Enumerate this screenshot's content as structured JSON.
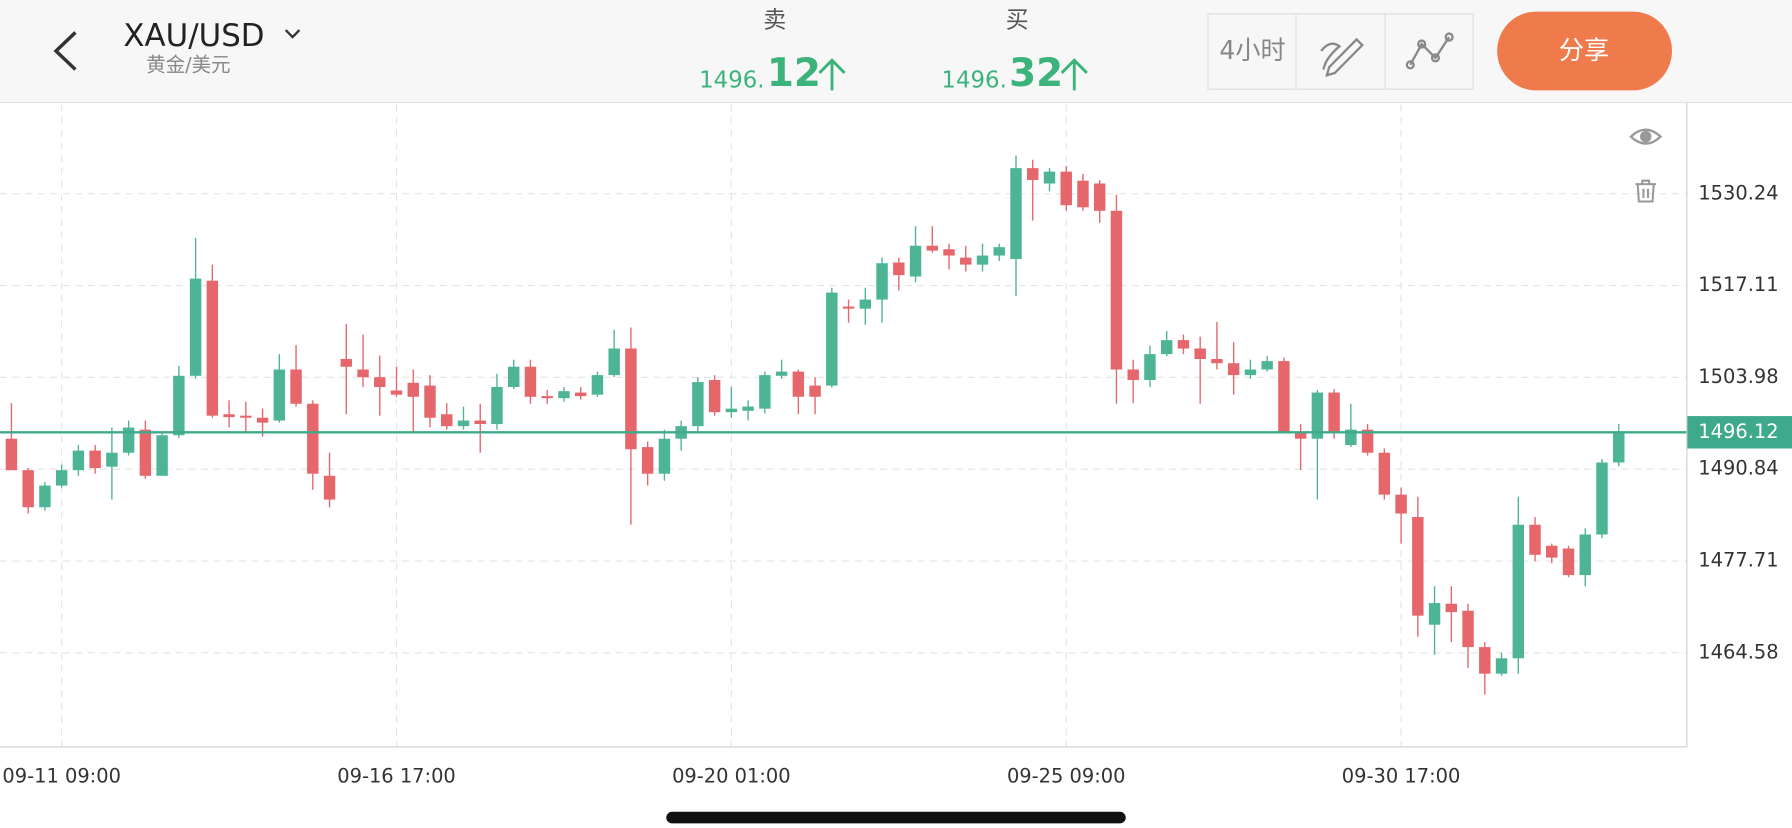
{
  "header": {
    "symbol": "XAU/USD",
    "symbol_name": "黄金/美元",
    "sell": {
      "label": "卖",
      "price_main": "1496.",
      "price_pips": "12"
    },
    "buy": {
      "label": "买",
      "price_main": "1496.",
      "price_pips": "32"
    },
    "timeframe": "4小时",
    "share": "分享"
  },
  "chart_data": {
    "type": "candlestick",
    "categories": [
      null,
      null,
      null,
      "09-11 09:00",
      null,
      null,
      null,
      null,
      null,
      null,
      null,
      null,
      null,
      null,
      null,
      null,
      null,
      null,
      null,
      null,
      null,
      null,
      null,
      "09-16 17:00",
      null,
      null,
      null,
      null,
      null,
      null,
      null,
      null,
      null,
      null,
      null,
      null,
      null,
      null,
      null,
      null,
      null,
      null,
      null,
      "09-20 01:00",
      null,
      null,
      null,
      null,
      null,
      null,
      null,
      null,
      null,
      null,
      null,
      null,
      null,
      null,
      null,
      null,
      null,
      null,
      null,
      "09-25 09:00",
      null,
      null,
      null,
      null,
      null,
      null,
      null,
      null,
      null,
      null,
      null,
      null,
      null,
      null,
      null,
      null,
      null,
      null,
      null,
      "09-30 17:00",
      null,
      null,
      null,
      null,
      null,
      null,
      null,
      null,
      null,
      null,
      null,
      null,
      null
    ],
    "open": [
      1495.2,
      1490.7,
      1485.4,
      1488.5,
      1490.7,
      1493.5,
      1491.2,
      1493.2,
      1496.5,
      1489.9,
      1495.7,
      1504.2,
      1517.8,
      1498.7,
      1498.5,
      1498.2,
      1497.8,
      1505.1,
      1500.2,
      1489.9,
      1506.6,
      1505.1,
      1504.0,
      1502.1,
      1503.2,
      1502.8,
      1498.7,
      1497.0,
      1497.8,
      1497.3,
      1502.6,
      1505.5,
      1501.3,
      1501.0,
      1501.8,
      1501.5,
      1504.3,
      1508.1,
      1494.0,
      1490.2,
      1495.2,
      1497.0,
      1503.6,
      1499.0,
      1499.2,
      1499.5,
      1504.2,
      1504.8,
      1502.8,
      1502.8,
      1514.1,
      1513.8,
      1515.1,
      1520.4,
      1518.4,
      1522.8,
      1522.3,
      1521.1,
      1520.1,
      1521.4,
      1520.9,
      1533.9,
      1531.7,
      1533.4,
      1532.1,
      1531.7,
      1527.8,
      1505.1,
      1503.6,
      1507.3,
      1509.3,
      1508.1,
      1506.6,
      1506.0,
      1504.3,
      1505.1,
      1506.3,
      1496.2,
      1495.2,
      1501.8,
      1494.3,
      1496.5,
      1493.2,
      1487.2,
      1484.0,
      1468.6,
      1471.6,
      1470.6,
      1465.4,
      1461.6,
      1463.8,
      1482.9,
      1479.9,
      1479.5,
      1475.7,
      1481.5,
      1491.8
    ],
    "high": [
      1500.3,
      1491.0,
      1489.0,
      1491.5,
      1494.3,
      1494.3,
      1496.8,
      1497.8,
      1497.8,
      1496.2,
      1505.6,
      1523.9,
      1520.1,
      1500.7,
      1500.5,
      1499.5,
      1507.3,
      1508.6,
      1500.7,
      1493.2,
      1511.6,
      1510.1,
      1507.1,
      1505.5,
      1505.1,
      1504.3,
      1500.3,
      1499.8,
      1500.2,
      1504.5,
      1506.5,
      1506.5,
      1502.2,
      1502.6,
      1502.6,
      1504.8,
      1510.8,
      1511.1,
      1494.8,
      1496.5,
      1497.8,
      1504.0,
      1504.3,
      1502.6,
      1500.7,
      1504.8,
      1506.5,
      1505.1,
      1504.0,
      1516.8,
      1515.1,
      1516.8,
      1521.1,
      1521.1,
      1525.6,
      1525.6,
      1523.1,
      1522.8,
      1523.1,
      1523.1,
      1535.7,
      1535.1,
      1533.9,
      1534.2,
      1533.1,
      1532.2,
      1530.1,
      1506.5,
      1508.5,
      1510.6,
      1510.1,
      1509.8,
      1511.9,
      1509.0,
      1506.5,
      1507.0,
      1506.8,
      1497.3,
      1502.2,
      1502.3,
      1500.2,
      1497.3,
      1493.8,
      1488.2,
      1486.9,
      1474.1,
      1474.1,
      1471.6,
      1466.1,
      1464.6,
      1486.9,
      1484.0,
      1480.2,
      1479.9,
      1482.4,
      1492.3,
      1497.3
    ],
    "low": [
      1490.7,
      1484.5,
      1484.9,
      1488.2,
      1489.9,
      1490.2,
      1486.5,
      1492.8,
      1489.5,
      1489.9,
      1495.3,
      1503.8,
      1498.2,
      1496.8,
      1496.2,
      1495.5,
      1497.5,
      1499.8,
      1487.9,
      1485.4,
      1498.7,
      1502.6,
      1498.5,
      1501.2,
      1496.2,
      1496.8,
      1496.5,
      1496.5,
      1493.2,
      1496.5,
      1502.3,
      1500.2,
      1500.2,
      1500.5,
      1500.8,
      1501.2,
      1504.0,
      1482.9,
      1488.5,
      1489.2,
      1493.5,
      1496.2,
      1498.5,
      1498.2,
      1497.8,
      1498.8,
      1503.8,
      1498.7,
      1498.7,
      1502.5,
      1511.8,
      1511.5,
      1511.8,
      1516.4,
      1517.6,
      1521.8,
      1519.4,
      1519.1,
      1519.1,
      1520.6,
      1515.6,
      1526.4,
      1530.6,
      1527.8,
      1527.8,
      1526.1,
      1500.2,
      1500.3,
      1502.6,
      1507.0,
      1507.3,
      1500.2,
      1505.1,
      1501.5,
      1503.8,
      1504.8,
      1496.2,
      1490.7,
      1486.5,
      1495.2,
      1494.0,
      1492.8,
      1486.5,
      1480.2,
      1466.9,
      1464.3,
      1466.1,
      1462.4,
      1458.6,
      1461.3,
      1461.6,
      1477.7,
      1477.4,
      1475.4,
      1474.1,
      1481.0,
      1491.3
    ],
    "close": [
      1490.7,
      1485.4,
      1488.5,
      1490.7,
      1493.5,
      1491.0,
      1493.2,
      1496.8,
      1489.9,
      1495.7,
      1504.2,
      1518.1,
      1498.5,
      1498.3,
      1498.2,
      1497.5,
      1505.1,
      1500.2,
      1490.2,
      1486.5,
      1505.5,
      1504.0,
      1502.6,
      1501.5,
      1501.2,
      1498.2,
      1497.0,
      1497.8,
      1497.3,
      1502.6,
      1505.5,
      1501.2,
      1501.0,
      1502.0,
      1501.3,
      1504.3,
      1508.1,
      1493.7,
      1490.2,
      1495.2,
      1497.0,
      1503.3,
      1499.0,
      1499.5,
      1499.8,
      1504.3,
      1504.8,
      1501.2,
      1501.2,
      1516.1,
      1513.8,
      1515.1,
      1520.3,
      1518.6,
      1522.8,
      1522.1,
      1521.4,
      1520.1,
      1521.4,
      1522.6,
      1533.9,
      1532.2,
      1533.4,
      1528.6,
      1528.3,
      1527.8,
      1505.1,
      1503.6,
      1507.3,
      1509.3,
      1508.1,
      1506.6,
      1506.0,
      1504.3,
      1505.1,
      1506.3,
      1496.2,
      1495.2,
      1501.8,
      1496.2,
      1496.5,
      1493.2,
      1487.2,
      1484.5,
      1469.9,
      1471.7,
      1470.4,
      1465.4,
      1461.6,
      1463.8,
      1482.9,
      1478.6,
      1478.2,
      1475.7,
      1481.5,
      1491.8,
      1496.1
    ],
    "up_color": "#4db596",
    "down_color": "#e5666b",
    "ylim": [
      1451.12,
      1543.04
    ],
    "yticks": [
      1464.58,
      1477.71,
      1490.84,
      1503.98,
      1517.11,
      1530.24
    ],
    "grid": true,
    "last_price": 1496.12,
    "last_price_color": "#3fa98b"
  }
}
